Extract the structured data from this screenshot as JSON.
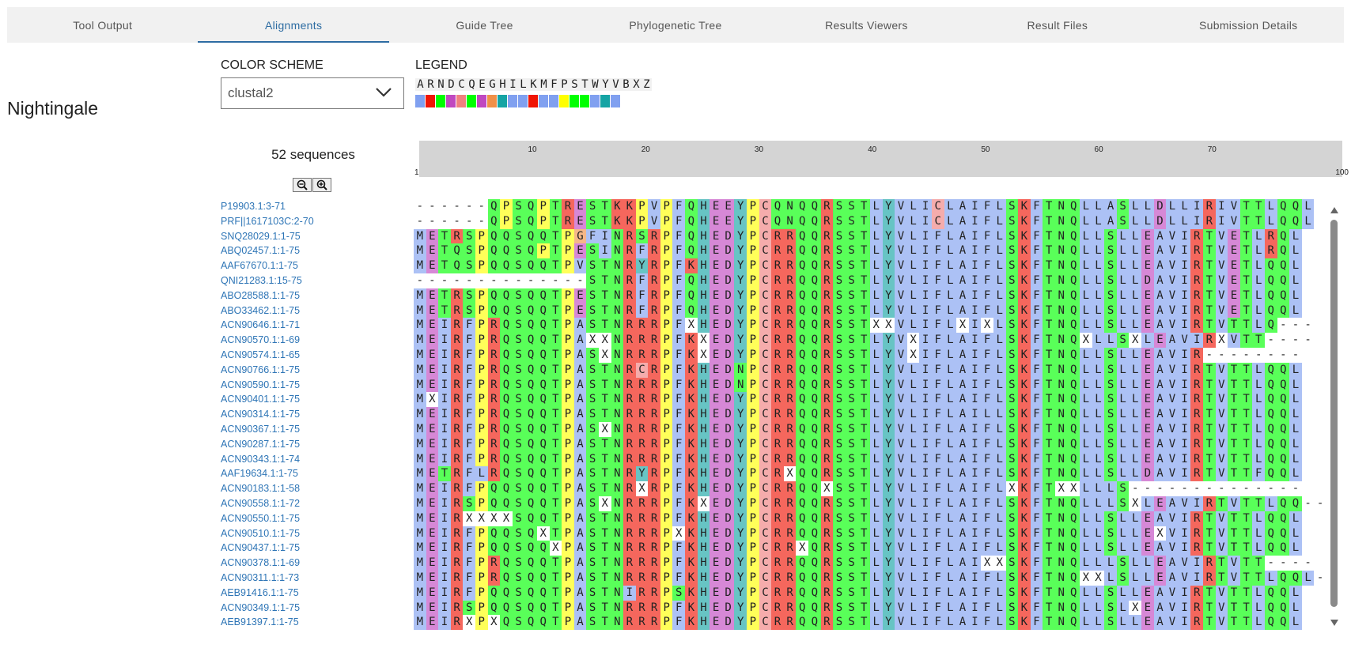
{
  "tabs": [
    {
      "label": "Tool Output",
      "active": false
    },
    {
      "label": "Alignments",
      "active": true
    },
    {
      "label": "Guide Tree",
      "active": false
    },
    {
      "label": "Phylogenetic Tree",
      "active": false
    },
    {
      "label": "Results Viewers",
      "active": false
    },
    {
      "label": "Result Files",
      "active": false
    },
    {
      "label": "Submission Details",
      "active": false
    }
  ],
  "page_title": "Nightingale",
  "color_scheme": {
    "label": "COLOR SCHEME",
    "selected": "clustal2"
  },
  "legend": {
    "label": "LEGEND",
    "letters": [
      "A",
      "R",
      "N",
      "D",
      "C",
      "Q",
      "E",
      "G",
      "H",
      "I",
      "L",
      "K",
      "M",
      "F",
      "P",
      "S",
      "T",
      "W",
      "Y",
      "V",
      "B",
      "X",
      "Z"
    ],
    "colors": [
      "#80a0f0",
      "#f01505",
      "#00ff00",
      "#c048c0",
      "#f08080",
      "#00ff00",
      "#c048c0",
      "#f09048",
      "#15a4a4",
      "#80a0f0",
      "#80a0f0",
      "#f01505",
      "#80a0f0",
      "#80a0f0",
      "#ffff00",
      "#00ff00",
      "#00ff00",
      "#80a0f0",
      "#15a4a4",
      "#80a0f0",
      "#ffffff",
      "#ffffff",
      "#ffffff"
    ]
  },
  "sequence_count": "52 sequences",
  "icons": {
    "zoom_out": "zoom-out-icon",
    "zoom_in": "zoom-in-icon",
    "dropdown": "chevron-down-icon"
  },
  "ruler": {
    "ticks": [
      10,
      20,
      30,
      40,
      50,
      60,
      70
    ],
    "start": "1",
    "end": "100"
  },
  "sequences": [
    {
      "name": "P19903.1:3-71",
      "seq": "------QPSQPTRESTKKPVPFQHEEYPCQNQQRSSTLYVLICLAIFLSKFTNQLLASLLDLLIRIVTTLQQL"
    },
    {
      "name": "PRF||1617103C:2-70",
      "seq": "------QPSQPTRESTKKPVPFQHEEYPCQNQQRSSTLYVLICLAIFLSKFTNQLLASLLDLLIRIVTTLQQL"
    },
    {
      "name": "SNQ28029.1:1-75",
      "seq": "METRSPQQSQQTPGFINRSRPFQHEDYPCRRQQRSSTLYVLIFLAIFLSKFTNQLLSLLEAVIRTVETLRQL"
    },
    {
      "name": "ABQ02457.1:1-75",
      "seq": "METQSPQQSQPTPESINRFRPFQHEDYPCRRQQRSSTLYVLIFLAIFLSKFTNQLLSLLEAVIRTVETLRQL"
    },
    {
      "name": "AAF67670.1:1-75",
      "seq": "METQSPQQSQQTPVSTNRYRPFKHEDYPCRRQQRSSTLYVLIFLAIFLSKFTNQLLSLLEAVIRTVETLQQL"
    },
    {
      "name": "QNI21283.1:15-75",
      "seq": "--------------STNRFRPFQHEDYPCRRQQRSSTLYVLIFLAIFLSKFTNQLLSLLDAVIRTVETLQQL"
    },
    {
      "name": "ABO28588.1:1-75",
      "seq": "METRSPQQSQQTPESTNRFRPFQHEDYPCRRQQRSSTLYVLIFLAIFLSKFTNQLLSLLEAVIRTVETLQQL"
    },
    {
      "name": "ABO33462.1:1-75",
      "seq": "METRSPQQSQQTPESTNRFRPFQHEDYPCRRQQRSSTLYVLIFLAIFLSKFTNQLLSLLEAVIRTVETLQQL"
    },
    {
      "name": "ACN90646.1:1-71",
      "seq": "MEIRFPRQSQQTPASTNRRRPFXHEDYPCRRQQRSSTXXVLIFLXIXLSKFTNQLLSLLEAVIRTVTTLQ---"
    },
    {
      "name": "ACN90570.1:1-69",
      "seq": "MEIRFPRQSQQTPAXXNRRRPFKXEDYPCRRQQRSSTLYVXIFLAIFLSKFTNQXLLSXLEAVIRXVTT----"
    },
    {
      "name": "ACN90574.1:1-65",
      "seq": "MEIRFPRQSQQTPASXNRRRPFKXEDYPCRRQQRSSTLYVXIFLAIFLSKFTNQLLSLLEAVIR--------"
    },
    {
      "name": "ACN90766.1:1-75",
      "seq": "MEIRFPRQSQQTPASTNRCRPFKHEDNPCRRQQRSSTLYVLIFLAIFLSKFTNQLLSLLEAVIRTVTTLQQL"
    },
    {
      "name": "ACN90590.1:1-75",
      "seq": "MEIRFPRQSQQTPASTNRRRPFKHEDNPCRRQQRSSTLYVLIFLAIFLSKFTNQLLSLLEAVIRTVTTLQQL"
    },
    {
      "name": "ACN90401.1:1-75",
      "seq": "MXIRFPRQSQQTPASTNRRRPFKHEDYPCRRQQRSSTLYVLIFLAIFLSKFTNQLLSLLEAVIRTVTTLQQL"
    },
    {
      "name": "ACN90314.1:1-75",
      "seq": "MEIRFPRQSQQTPASTNRRRPFKHEDYPCRRQQRSSTLYVLIFLAILLSKFTNQLLSLLEAVIRTVTTLQQL"
    },
    {
      "name": "ACN90367.1:1-75",
      "seq": "MEIRFPRQSQQTPASXNRRRPFKHEDYPCRRQQRSSTLYVLIFLAIFLSKFTNQLLSLLEAVIRTVTTLQQL"
    },
    {
      "name": "ACN90287.1:1-75",
      "seq": "MEIRFPRQSQQTPASTNRRRPFKHEDYPCRRQQRSSTLYVLIFLAIFLSKFTNQLLSLLEAVIRTVTTLQQL"
    },
    {
      "name": "ACN90343.1:1-74",
      "seq": "MEIRFPRQSQQTPASTNRRRPFKHEDYPCRRQQRSSTLYVLIFLAIFLSKFTNQLLSLLEAVIRTVTTLQQL"
    },
    {
      "name": "AAF19634.1:1-75",
      "seq": "METRFLRQSQQTPASTNRYRPFKHEDYPCRXQQRSSTLYVLIFLAIFLSKFTNQLLSLLDAVIRTVTTFQQL"
    },
    {
      "name": "ACN90183.1:1-58",
      "seq": "MEIRFPQQSQQTPASTNRXRPFKHEDYPCRRQQXSSTLYVLIFLAIFLXKFTXXLLLS--------------"
    },
    {
      "name": "ACN90558.1:1-72",
      "seq": "MEIRSPQQSQQTPASXNRRRPFKXEDYPCRRQQRSSTLYVLIFLAIFLSKFTNQLLLSXLEAVIRTVTTLQQ--"
    },
    {
      "name": "ACN90550.1:1-75",
      "seq": "MEIRXXXXSQQTPASTNRRRPFKHEDYPCRRQQRSSTLYVLIFLAIFLSKFTNQLLSLLEAVIRTVTTLQQL"
    },
    {
      "name": "ACN90510.1:1-75",
      "seq": "MEIRFPQQSQXTPASTNRRRPXKHEDYPCRRQQRSSTLYVLIFLAIFLSKFTNQLLSLLEXVIRTVTTLQQL"
    },
    {
      "name": "ACN90437.1:1-75",
      "seq": "MEIRFPQQSQQXPASTNRRRPFKHEDYPCRRXQRSSTLYVLIFLAIFLSKFTNQLLSLLEAVIRTVTTLQQL"
    },
    {
      "name": "ACN90378.1:1-69",
      "seq": "MEIRFPRQSQQTPASTNRRRPFKHEDYPCRRQQRSSTLYVLIFLAIXXSKFTNQLLLSLLEAVIRTVTT----"
    },
    {
      "name": "ACN90311.1:1-73",
      "seq": "MEIRFPRQSQQTPASTNRRRPFKHEDYPCRRQQRSSTLYVLIFLAIFLSKFTNQXXLSLLEAVIRTVTTLQQL-"
    },
    {
      "name": "AEB91416.1:1-75",
      "seq": "MEIRFPQQSQQTPASTNIRRPSKHEDYPCRRQQRSSTLYVLIFLAIFLSKFTNQLLSLLEAVIRTVTTLQQL"
    },
    {
      "name": "ACN90349.1:1-75",
      "seq": "MEIRSPQQSQQTPASTNRRRPFKHEDYPCRRQQRSSTLYVLIFLAIFLSKFTNQLLSLXEAVIRTVTTLQQL"
    },
    {
      "name": "AEB91397.1:1-75",
      "seq": "MEIRXPXQSQQTPASTNRRRPFKHEDYPCRRQQRSSTLYVLIFLAIFLSKFTNQLLSLLEAVIRTVTTLQQL"
    }
  ]
}
